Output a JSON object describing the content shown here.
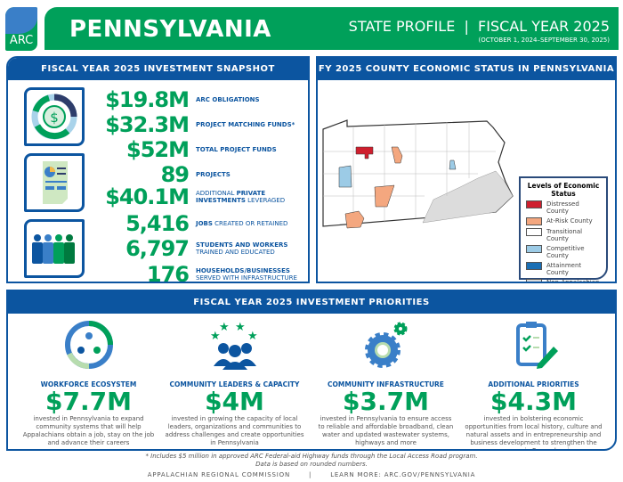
{
  "header": {
    "logo": "ARC",
    "state": "PENNSYLVANIA",
    "profile": "STATE PROFILE  |  FISCAL YEAR 2025",
    "dates": "(OCTOBER 1, 2024–SEPTEMBER 30, 2025)"
  },
  "snapshot": {
    "title": "FISCAL YEAR 2025 INVESTMENT SNAPSHOT",
    "icons": [
      "dollar-icon",
      "report-icon",
      "people-icon"
    ],
    "items": [
      {
        "value": "$19.8M",
        "bold": "ARC OBLIGATIONS",
        "rest": ""
      },
      {
        "value": "$32.3M",
        "bold": "PROJECT MATCHING FUNDS*",
        "rest": ""
      },
      {
        "value": "$52M",
        "bold": "TOTAL PROJECT FUNDS",
        "rest": ""
      },
      {
        "value": "89",
        "bold": "PROJECTS",
        "rest": ""
      },
      {
        "value": "$40.1M",
        "pre": "ADDITIONAL ",
        "bold": "PRIVATE INVESTMENTS",
        "rest": " LEVERAGED"
      },
      {
        "value": "5,416",
        "bold": "JOBS",
        "rest": " CREATED OR RETAINED"
      },
      {
        "value": "6,797",
        "bold": "STUDENTS AND WORKERS",
        "rest": " TRAINED AND EDUCATED"
      },
      {
        "value": "176",
        "bold": "HOUSEHOLDS/BUSINESSES",
        "rest": " SERVED WITH INFRASTRUCTURE"
      }
    ]
  },
  "map": {
    "title": "FY 2025 COUNTY ECONOMIC STATUS IN PENNSYLVANIA",
    "legend_title": "Levels of Economic Status",
    "legend": [
      {
        "label": "Distressed County",
        "color": "#cf1f2e"
      },
      {
        "label": "At-Risk County",
        "color": "#f4a77f"
      },
      {
        "label": "Transitional County",
        "color": "#ffffff"
      },
      {
        "label": "Competitive County",
        "color": "#9ccbe6"
      },
      {
        "label": "Attainment County",
        "color": "#1a6fb5"
      },
      {
        "label": "Non-Appalachian County",
        "color": "#dcdcdc"
      }
    ]
  },
  "priorities": {
    "title": "FISCAL YEAR 2025 INVESTMENT PRIORITIES",
    "items": [
      {
        "title": "WORKFORCE ECOSYSTEM",
        "amount": "$7.7M",
        "desc": "invested in Pennsylvania to expand community systems that will help Appalachians obtain a job, stay on the job and advance their careers"
      },
      {
        "title": "COMMUNITY LEADERS & CAPACITY",
        "amount": "$4M",
        "desc": "invested in growing the capacity of local leaders, organizations and communities to address challenges and create opportunities in Pennsylvania"
      },
      {
        "title": "COMMUNITY INFRASTRUCTURE",
        "amount": "$3.7M",
        "desc": "invested in Pennsylvania to ensure access to reliable and affordable broadband, clean water and updated wastewater systems, highways and more"
      },
      {
        "title": "ADDITIONAL PRIORITIES",
        "amount": "$4.3M",
        "desc": "invested in bolstering economic opportunities from local history, culture and natural assets and in entrepreneurship and business development to strengthen the economy in Pennsylvania"
      }
    ]
  },
  "footnote": [
    "* Includes $5 million in approved ARC Federal-aid Highway funds through the Local Access Road program.",
    "Data is based on rounded numbers."
  ],
  "footer": {
    "org": "APPALACHIAN REGIONAL COMMISSION",
    "sep": "|",
    "link": "LEARN MORE: ARC.GOV/PENNSYLVANIA"
  },
  "colors": {
    "green": "#00a05a",
    "blue": "#0c55a0"
  }
}
